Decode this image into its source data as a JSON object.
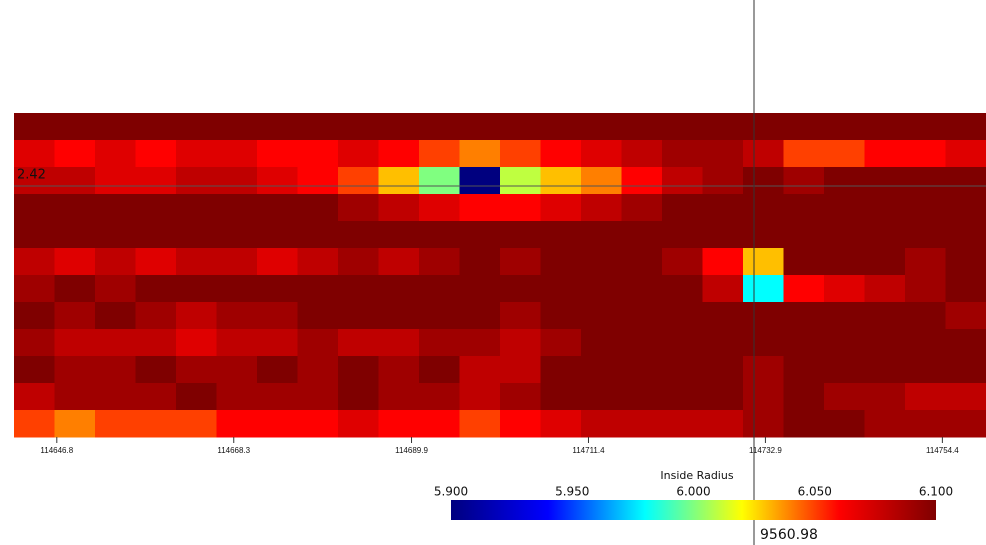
{
  "chart_data": {
    "type": "heatmap",
    "xlim": [
      114641.6,
      114759.7
    ],
    "xticks": [
      114646.8,
      114668.3,
      114689.9,
      114711.4,
      114732.9,
      114754.4
    ],
    "z": [
      [
        6.1,
        6.1,
        6.1,
        6.1,
        6.1,
        6.1,
        6.1,
        6.1,
        6.1,
        6.1,
        6.1,
        6.1,
        6.1,
        6.1,
        6.1,
        6.1,
        6.1,
        6.1,
        6.1,
        6.1,
        6.1,
        6.1,
        6.1,
        6.1
      ],
      [
        6.07,
        6.06,
        6.07,
        6.06,
        6.07,
        6.07,
        6.06,
        6.06,
        6.07,
        6.06,
        6.05,
        6.04,
        6.05,
        6.06,
        6.07,
        6.08,
        6.09,
        6.09,
        6.08,
        6.05,
        6.05,
        6.06,
        6.06,
        6.07
      ],
      [
        6.08,
        6.08,
        6.07,
        6.07,
        6.08,
        6.08,
        6.07,
        6.06,
        6.05,
        6.03,
        6.0,
        5.9,
        6.01,
        6.03,
        6.04,
        6.06,
        6.08,
        6.09,
        6.1,
        6.09,
        6.1,
        6.1,
        6.1,
        6.1
      ],
      [
        6.1,
        6.1,
        6.1,
        6.1,
        6.1,
        6.1,
        6.1,
        6.1,
        6.09,
        6.08,
        6.07,
        6.06,
        6.06,
        6.07,
        6.08,
        6.09,
        6.1,
        6.1,
        6.1,
        6.1,
        6.1,
        6.1,
        6.1,
        6.1
      ],
      [
        6.1,
        6.1,
        6.1,
        6.1,
        6.1,
        6.1,
        6.1,
        6.1,
        6.1,
        6.1,
        6.1,
        6.1,
        6.1,
        6.1,
        6.1,
        6.1,
        6.1,
        6.1,
        6.1,
        6.1,
        6.1,
        6.1,
        6.1,
        6.1
      ],
      [
        6.08,
        6.07,
        6.08,
        6.07,
        6.08,
        6.08,
        6.07,
        6.08,
        6.09,
        6.08,
        6.09,
        6.1,
        6.09,
        6.1,
        6.1,
        6.1,
        6.09,
        6.06,
        6.03,
        6.1,
        6.1,
        6.1,
        6.09,
        6.1
      ],
      [
        6.09,
        6.1,
        6.09,
        6.1,
        6.1,
        6.1,
        6.1,
        6.1,
        6.1,
        6.1,
        6.1,
        6.1,
        6.1,
        6.1,
        6.1,
        6.1,
        6.1,
        6.08,
        5.98,
        6.06,
        6.07,
        6.08,
        6.09,
        6.1
      ],
      [
        6.1,
        6.09,
        6.1,
        6.09,
        6.08,
        6.09,
        6.09,
        6.1,
        6.1,
        6.1,
        6.1,
        6.1,
        6.09,
        6.1,
        6.1,
        6.1,
        6.1,
        6.1,
        6.1,
        6.1,
        6.1,
        6.1,
        6.1,
        6.09
      ],
      [
        6.09,
        6.08,
        6.08,
        6.08,
        6.07,
        6.08,
        6.08,
        6.09,
        6.08,
        6.08,
        6.09,
        6.09,
        6.08,
        6.09,
        6.1,
        6.1,
        6.1,
        6.1,
        6.1,
        6.1,
        6.1,
        6.1,
        6.1,
        6.1
      ],
      [
        6.1,
        6.09,
        6.09,
        6.1,
        6.09,
        6.09,
        6.1,
        6.09,
        6.1,
        6.09,
        6.1,
        6.08,
        6.08,
        6.1,
        6.1,
        6.1,
        6.1,
        6.1,
        6.09,
        6.1,
        6.1,
        6.1,
        6.1,
        6.1
      ],
      [
        6.08,
        6.09,
        6.09,
        6.09,
        6.1,
        6.09,
        6.09,
        6.09,
        6.1,
        6.09,
        6.09,
        6.08,
        6.09,
        6.1,
        6.1,
        6.1,
        6.1,
        6.1,
        6.09,
        6.1,
        6.09,
        6.09,
        6.08,
        6.08
      ],
      [
        6.05,
        6.04,
        6.05,
        6.05,
        6.05,
        6.06,
        6.06,
        6.06,
        6.07,
        6.06,
        6.06,
        6.05,
        6.06,
        6.07,
        6.08,
        6.08,
        6.08,
        6.08,
        6.09,
        6.1,
        6.1,
        6.09,
        6.09,
        6.09
      ]
    ],
    "colorbar": {
      "title": "Inside Radius",
      "lim": [
        5.9,
        6.1
      ],
      "ticks": [
        {
          "value": 5.9,
          "label": "5.900"
        },
        {
          "value": 5.95,
          "label": "5.950"
        },
        {
          "value": 6.0,
          "label": "6.000"
        },
        {
          "value": 6.05,
          "label": "6.050"
        },
        {
          "value": 6.1,
          "label": "6.100"
        }
      ],
      "colors": [
        "#00007f",
        "#0000ff",
        "#00ffff",
        "#ffff00",
        "#ff0000",
        "#7f0000"
      ]
    },
    "cursor_labels": [
      "2.42",
      "9560.98"
    ]
  }
}
